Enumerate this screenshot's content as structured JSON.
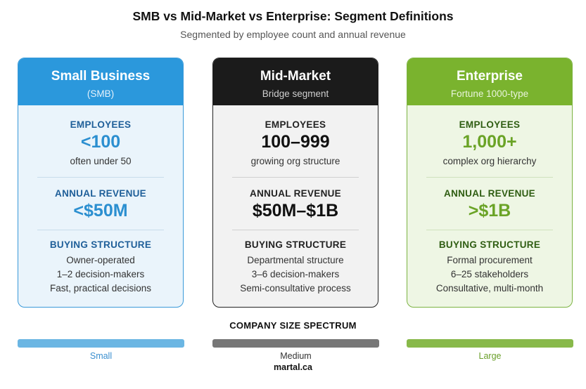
{
  "title": "SMB vs Mid-Market vs Enterprise: Segment Definitions",
  "subtitle": "Segmented by employee count and annual revenue",
  "colors": {
    "smb": "#2b98dc",
    "mid": "#1b1b1b",
    "ent": "#7ab32e"
  },
  "segments": [
    {
      "name": "Small Business",
      "sub": "(SMB)",
      "employees_label": "EMPLOYEES",
      "employees": "<100",
      "employees_note": "often under 50",
      "revenue_label": "ANNUAL REVENUE",
      "revenue": "<$50M",
      "buying_label": "BUYING STRUCTURE",
      "buying": [
        "Owner-operated",
        "1–2 decision-makers",
        "Fast, practical decisions"
      ]
    },
    {
      "name": "Mid-Market",
      "sub": "Bridge segment",
      "employees_label": "EMPLOYEES",
      "employees": "100–999",
      "employees_note": "growing org structure",
      "revenue_label": "ANNUAL REVENUE",
      "revenue": "$50M–$1B",
      "buying_label": "BUYING STRUCTURE",
      "buying": [
        "Departmental structure",
        "3–6 decision-makers",
        "Semi-consultative process"
      ]
    },
    {
      "name": "Enterprise",
      "sub": "Fortune 1000-type",
      "employees_label": "EMPLOYEES",
      "employees": "1,000+",
      "employees_note": "complex org hierarchy",
      "revenue_label": "ANNUAL REVENUE",
      "revenue": ">$1B",
      "buying_label": "BUYING STRUCTURE",
      "buying": [
        "Formal procurement",
        "6–25 stakeholders",
        "Consultative, multi-month"
      ]
    }
  ],
  "spectrum": {
    "title": "COMPANY SIZE SPECTRUM",
    "labels": [
      "Small",
      "Medium",
      "Large"
    ],
    "colors": [
      "#6bb6e3",
      "#777777",
      "#88b94a"
    ],
    "label_colors": [
      "#3a8fcf",
      "#333333",
      "#6a9f2a"
    ]
  },
  "footer": "martal.ca"
}
